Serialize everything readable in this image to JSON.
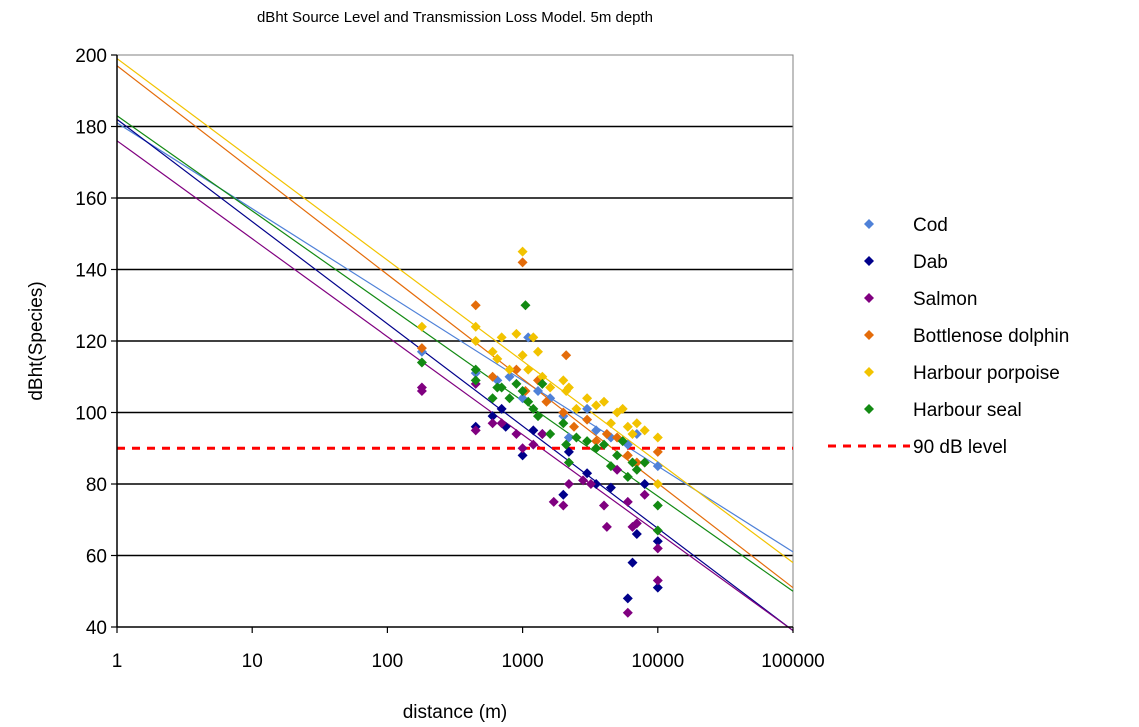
{
  "chart_data": {
    "type": "scatter",
    "title": "dBht Source Level and Transmission Loss Model. 5m depth",
    "xlabel": "distance (m)",
    "ylabel": "dBht(Species)",
    "xscale": "log",
    "xlim": [
      1,
      100000
    ],
    "ylim": [
      40,
      200
    ],
    "xticks": [
      "1",
      "10",
      "100",
      "1000",
      "10000",
      "100000"
    ],
    "yticks": [
      "40",
      "60",
      "80",
      "100",
      "120",
      "140",
      "160",
      "180",
      "200"
    ],
    "grid": "horizontal",
    "legend_position": "right",
    "series": [
      {
        "name": "Cod",
        "color": "#4f81d8",
        "trendline": {
          "y_at_1": 181,
          "y_at_100000": 61
        },
        "points": [
          [
            180,
            117
          ],
          [
            450,
            111
          ],
          [
            650,
            109
          ],
          [
            800,
            110
          ],
          [
            1000,
            104
          ],
          [
            1100,
            121
          ],
          [
            1300,
            106
          ],
          [
            1600,
            104
          ],
          [
            2000,
            99
          ],
          [
            2200,
            93
          ],
          [
            3000,
            101
          ],
          [
            3500,
            95
          ],
          [
            4500,
            93
          ],
          [
            6000,
            91
          ],
          [
            7000,
            94
          ],
          [
            10000,
            85
          ]
        ]
      },
      {
        "name": "Dab",
        "color": "#00008b",
        "trendline": {
          "y_at_1": 182,
          "y_at_100000": 39
        },
        "points": [
          [
            450,
            96
          ],
          [
            600,
            99
          ],
          [
            700,
            101
          ],
          [
            750,
            96
          ],
          [
            1000,
            88
          ],
          [
            1200,
            95
          ],
          [
            1400,
            94
          ],
          [
            2000,
            77
          ],
          [
            2200,
            89
          ],
          [
            3000,
            83
          ],
          [
            3500,
            80
          ],
          [
            4500,
            79
          ],
          [
            6000,
            48
          ],
          [
            6500,
            58
          ],
          [
            7000,
            66
          ],
          [
            8000,
            80
          ],
          [
            10000,
            51
          ],
          [
            10000,
            64
          ]
        ]
      },
      {
        "name": "Salmon",
        "color": "#800080",
        "trendline": {
          "y_at_1": 176,
          "y_at_100000": 39
        },
        "points": [
          [
            180,
            107
          ],
          [
            180,
            106
          ],
          [
            450,
            95
          ],
          [
            450,
            108
          ],
          [
            600,
            97
          ],
          [
            700,
            97
          ],
          [
            900,
            94
          ],
          [
            1000,
            90
          ],
          [
            1200,
            91
          ],
          [
            1400,
            94
          ],
          [
            1700,
            75
          ],
          [
            2000,
            74
          ],
          [
            2200,
            80
          ],
          [
            2800,
            81
          ],
          [
            3200,
            80
          ],
          [
            4000,
            74
          ],
          [
            4200,
            68
          ],
          [
            5000,
            84
          ],
          [
            6000,
            44
          ],
          [
            6000,
            75
          ],
          [
            6500,
            68
          ],
          [
            7000,
            69
          ],
          [
            8000,
            77
          ],
          [
            10000,
            53
          ],
          [
            10000,
            62
          ]
        ]
      },
      {
        "name": "Bottlenose dolphin",
        "color": "#e46c0a",
        "trendline": {
          "y_at_1": 197,
          "y_at_100000": 51
        },
        "points": [
          [
            180,
            118
          ],
          [
            450,
            130
          ],
          [
            600,
            110
          ],
          [
            900,
            112
          ],
          [
            1000,
            142
          ],
          [
            1050,
            106
          ],
          [
            1300,
            109
          ],
          [
            1500,
            103
          ],
          [
            2000,
            100
          ],
          [
            2100,
            116
          ],
          [
            2400,
            96
          ],
          [
            3000,
            98
          ],
          [
            3500,
            92
          ],
          [
            4200,
            94
          ],
          [
            5000,
            93
          ],
          [
            6000,
            88
          ],
          [
            7000,
            86
          ],
          [
            8000,
            86
          ],
          [
            10000,
            89
          ]
        ]
      },
      {
        "name": "Harbour porpoise",
        "color": "#f2c300",
        "trendline": {
          "y_at_1": 199,
          "y_at_100000": 58
        },
        "points": [
          [
            180,
            124
          ],
          [
            450,
            124
          ],
          [
            450,
            120
          ],
          [
            600,
            117
          ],
          [
            650,
            115
          ],
          [
            700,
            121
          ],
          [
            800,
            112
          ],
          [
            900,
            122
          ],
          [
            1000,
            145
          ],
          [
            1000,
            116
          ],
          [
            1100,
            112
          ],
          [
            1200,
            121
          ],
          [
            1300,
            117
          ],
          [
            1400,
            110
          ],
          [
            1600,
            107
          ],
          [
            2000,
            109
          ],
          [
            2100,
            106
          ],
          [
            2200,
            107
          ],
          [
            2500,
            101
          ],
          [
            3000,
            104
          ],
          [
            3500,
            102
          ],
          [
            4000,
            103
          ],
          [
            4500,
            97
          ],
          [
            5000,
            100
          ],
          [
            5500,
            101
          ],
          [
            6000,
            96
          ],
          [
            6500,
            94
          ],
          [
            7000,
            97
          ],
          [
            8000,
            95
          ],
          [
            10000,
            93
          ],
          [
            10000,
            80
          ]
        ]
      },
      {
        "name": "Harbour seal",
        "color": "#138a13",
        "trendline": {
          "y_at_1": 183,
          "y_at_100000": 50
        },
        "points": [
          [
            180,
            114
          ],
          [
            450,
            112
          ],
          [
            450,
            109
          ],
          [
            600,
            104
          ],
          [
            650,
            107
          ],
          [
            700,
            107
          ],
          [
            800,
            104
          ],
          [
            900,
            108
          ],
          [
            1000,
            106
          ],
          [
            1050,
            130
          ],
          [
            1100,
            103
          ],
          [
            1200,
            101
          ],
          [
            1300,
            99
          ],
          [
            1400,
            108
          ],
          [
            1600,
            94
          ],
          [
            2000,
            97
          ],
          [
            2100,
            91
          ],
          [
            2200,
            86
          ],
          [
            2500,
            93
          ],
          [
            3000,
            92
          ],
          [
            3500,
            90
          ],
          [
            4000,
            91
          ],
          [
            4500,
            85
          ],
          [
            5000,
            88
          ],
          [
            5500,
            92
          ],
          [
            6000,
            82
          ],
          [
            6500,
            86
          ],
          [
            7000,
            84
          ],
          [
            8000,
            86
          ],
          [
            10000,
            74
          ],
          [
            10000,
            67
          ]
        ]
      },
      {
        "name": "90 dB level",
        "color": "#ff0000",
        "style": "dashed",
        "y": 90
      }
    ]
  }
}
